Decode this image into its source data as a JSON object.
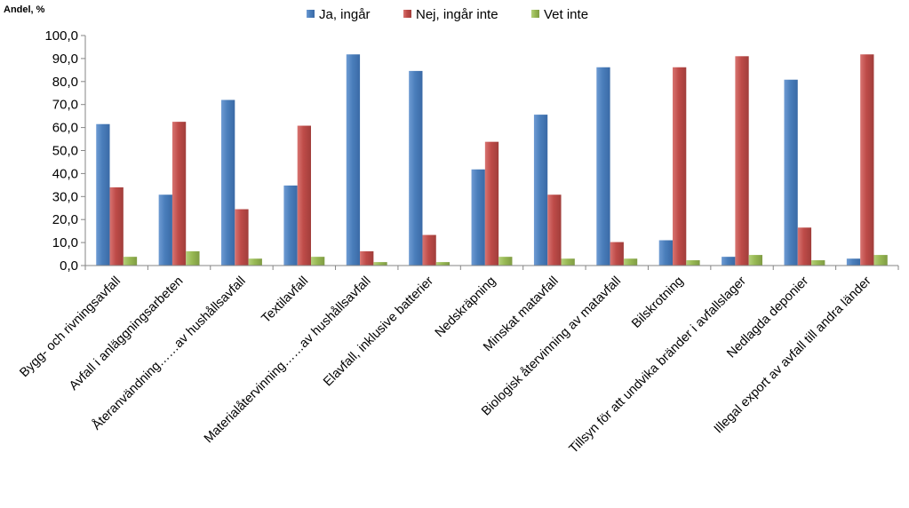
{
  "chart_data": {
    "type": "bar",
    "ylabel": "Andel, %",
    "ylim": [
      0,
      100
    ],
    "ytick_step": 10,
    "ytick_labels": [
      "0,0",
      "10,0",
      "20,0",
      "30,0",
      "40,0",
      "50,0",
      "60,0",
      "70,0",
      "80,0",
      "90,0",
      "100,0"
    ],
    "legend_position": "top-center",
    "grid": false,
    "categories": [
      "Bygg- och rivningsavfall",
      "Avfall i anläggningsarbeten",
      "Återanvändning……av hushållsavfall",
      "Textilavfall",
      "Materialåtervinning……av hushållsavfall",
      "Elavfall, inklusive batterier",
      "Nedskräpning",
      "Minskat matavfall",
      "Biologisk återvinning av matavfall",
      "Bilskrotning",
      "Tillsyn för att undvika bränder i avfallslager",
      "Nedlagda deponier",
      "Illegal export av avfall till andra länder"
    ],
    "series": [
      {
        "name": "Ja, ingår",
        "color": "#4a7ebb",
        "values": [
          61.5,
          30.8,
          72.0,
          34.8,
          91.8,
          84.6,
          41.8,
          65.6,
          86.2,
          11.0,
          3.8,
          80.8,
          3.0
        ]
      },
      {
        "name": "Nej, ingår inte",
        "color": "#be4b48",
        "values": [
          34.0,
          62.5,
          24.5,
          60.8,
          6.2,
          13.3,
          53.8,
          30.8,
          10.2,
          86.2,
          91.0,
          16.5,
          91.8
        ]
      },
      {
        "name": "Vet inte",
        "color": "#98b954",
        "values": [
          3.8,
          6.2,
          3.0,
          3.8,
          1.5,
          1.5,
          3.8,
          3.0,
          3.0,
          2.3,
          4.6,
          2.3,
          4.6
        ]
      }
    ]
  }
}
